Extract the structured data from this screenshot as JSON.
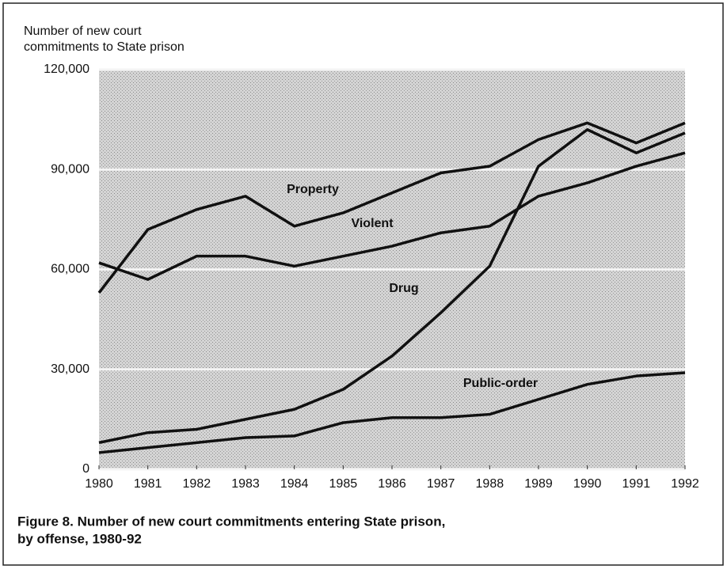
{
  "chart_data": {
    "type": "line",
    "title": [
      "Figure 8. Number of new court commitments entering State prison,",
      "by offense, 1980-92"
    ],
    "ylabel": [
      "Number of new court",
      "commitments to State prison"
    ],
    "x": [
      1980,
      1981,
      1982,
      1983,
      1984,
      1985,
      1986,
      1987,
      1988,
      1989,
      1990,
      1991,
      1992
    ],
    "xlim": [
      1980,
      1992
    ],
    "xticks": [
      1980,
      1981,
      1982,
      1983,
      1984,
      1985,
      1986,
      1987,
      1988,
      1989,
      1990,
      1991,
      1992
    ],
    "ylim": [
      0,
      120000
    ],
    "yticks": [
      0,
      {
        "value": 30000,
        "label": "30,000"
      },
      {
        "value": 60000,
        "label": "60,000"
      },
      {
        "value": 90000,
        "label": "90,000"
      },
      {
        "value": 120000,
        "label": "120,000"
      }
    ],
    "grid": true,
    "series": [
      {
        "name": "Property",
        "color": "#111111",
        "values": [
          53000,
          72000,
          78000,
          82000,
          73000,
          77000,
          83000,
          89000,
          91000,
          99000,
          104000,
          98000,
          104000
        ]
      },
      {
        "name": "Violent",
        "color": "#111111",
        "values": [
          62000,
          57000,
          64000,
          64000,
          61000,
          64000,
          67000,
          71000,
          73000,
          82000,
          86000,
          91000,
          95000
        ]
      },
      {
        "name": "Drug",
        "color": "#111111",
        "values": [
          8000,
          11000,
          12000,
          15000,
          18000,
          24000,
          34000,
          47000,
          61000,
          91000,
          102000,
          95000,
          101000
        ]
      },
      {
        "name": "Public-order",
        "color": "#111111",
        "values": [
          5000,
          6500,
          8000,
          9500,
          10000,
          14000,
          15500,
          15500,
          16500,
          21000,
          25500,
          28000,
          29000
        ]
      }
    ]
  }
}
